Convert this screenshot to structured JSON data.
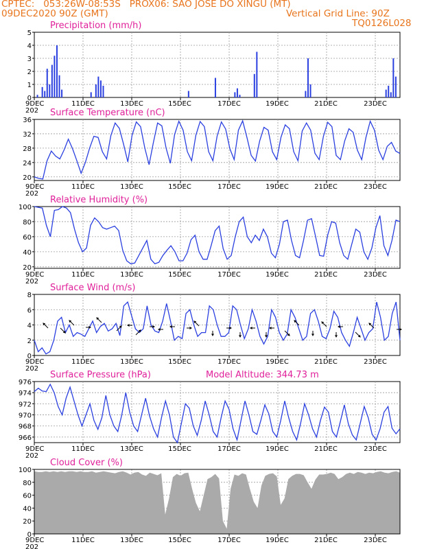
{
  "header": {
    "line1_left": "CPTEC:   053:26W-08:53S   PROX06: SAO JOSE DO XINGU (MT)",
    "line2_left": "09DEC2020 90Z (GMT)",
    "line2_right": "Vertical Grid Line: 90Z",
    "line3_right": "TQ0126L028"
  },
  "model_altitude": "Model Altitude: 344.73 m",
  "colors": {
    "line": "#2a3fe0",
    "bar": "#2a3fe0",
    "cloud": "#aaaaaa",
    "title": "#e0209a",
    "header": "#e8741c"
  },
  "x_ticks": [
    "9DEC",
    "11DEC",
    "13DEC",
    "15DEC",
    "17DEC",
    "19DEC",
    "21DEC",
    "23DEC"
  ],
  "x_year_stub": "202",
  "chart_data": [
    {
      "type": "bar",
      "title": "Precipitation (mm/h)",
      "ylim": [
        0,
        5
      ],
      "yticks": [
        "0",
        "1",
        "2",
        "3",
        "4",
        "5"
      ],
      "x": [
        0.1,
        0.3,
        0.4,
        0.5,
        0.6,
        0.7,
        0.8,
        0.9,
        1.0,
        1.1,
        2.3,
        2.5,
        2.6,
        2.7,
        2.8,
        6.3,
        7.4,
        8.2,
        8.3,
        8.4,
        9.0,
        9.1,
        11.1,
        11.2,
        11.3,
        14.4,
        14.5,
        14.6,
        14.7,
        14.8
      ],
      "values": [
        0.2,
        0.8,
        0.5,
        2.2,
        1.0,
        2.5,
        3.2,
        4.0,
        1.7,
        0.6,
        0.4,
        1.0,
        1.6,
        1.3,
        0.9,
        0.5,
        1.5,
        0.4,
        0.7,
        0.2,
        1.8,
        3.5,
        0.5,
        3.0,
        1.0,
        0.6,
        0.9,
        0.4,
        3.0,
        1.6
      ]
    },
    {
      "type": "line",
      "title": "Surface Temperature (nC)",
      "ylim": [
        19,
        36
      ],
      "yticks": [
        "20",
        "24",
        "28",
        "32",
        "36"
      ],
      "series": [
        {
          "values": [
            20,
            19.6,
            19.4,
            24.5,
            27.2,
            25.8,
            25,
            27.5,
            30.5,
            27.8,
            24.5,
            21,
            24,
            28,
            31.3,
            31,
            27,
            25,
            31.5,
            35,
            33.5,
            29,
            24.2,
            31.6,
            35.3,
            34,
            28,
            23.4,
            29.5,
            35,
            34.2,
            28,
            23.8,
            31.8,
            35.5,
            33,
            27,
            24.5,
            31.6,
            35.4,
            34,
            27,
            24.5,
            31.4,
            35.3,
            33.3,
            27.8,
            24.8,
            33,
            35.6,
            31,
            26,
            24.4,
            30,
            33.8,
            33,
            27,
            24.8,
            31,
            34.5,
            33.4,
            27,
            24.5,
            32.8,
            35,
            33,
            26.6,
            24.8,
            31.3,
            35.2,
            34,
            26,
            24.8,
            30,
            33.4,
            32.4,
            27.4,
            24.8,
            31,
            35.5,
            33,
            27.4,
            24.8,
            28.5,
            29.6,
            27.2,
            26.5
          ]
        }
      ]
    },
    {
      "type": "line",
      "title": "Relative Humidity (%)",
      "ylim": [
        18,
        100
      ],
      "yticks": [
        "20",
        "40",
        "60",
        "80",
        "100"
      ],
      "series": [
        {
          "values": [
            100,
            99,
            98,
            75,
            60,
            95,
            96,
            100,
            98,
            92,
            70,
            52,
            40,
            45,
            75,
            85,
            80,
            72,
            70,
            72,
            74,
            68,
            42,
            28,
            24,
            25,
            35,
            45,
            55,
            30,
            24,
            26,
            35,
            42,
            48,
            40,
            28,
            28,
            38,
            56,
            62,
            40,
            30,
            30,
            48,
            68,
            74,
            44,
            30,
            35,
            60,
            80,
            86,
            60,
            52,
            62,
            55,
            70,
            60,
            38,
            32,
            50,
            80,
            82,
            55,
            35,
            32,
            55,
            82,
            84,
            60,
            35,
            34,
            62,
            80,
            78,
            52,
            35,
            30,
            50,
            70,
            66,
            40,
            30,
            45,
            72,
            88,
            48,
            35,
            55,
            82,
            80
          ]
        }
      ]
    },
    {
      "type": "line",
      "title": "Surface Wind (m/s)",
      "ylim": [
        0,
        8
      ],
      "yticks": [
        "0",
        "2",
        "4",
        "6",
        "8"
      ],
      "series": [
        {
          "values": [
            2,
            0.5,
            1,
            0.2,
            0.5,
            2,
            4.5,
            5,
            3,
            4,
            2.5,
            3,
            2.8,
            2.5,
            3.5,
            4.5,
            3,
            3.8,
            4.2,
            3.2,
            3.5,
            4.2,
            2.6,
            6.5,
            7,
            5.2,
            3.5,
            3,
            3.5,
            6.5,
            4,
            3.2,
            3,
            4.5,
            6.8,
            4.5,
            2,
            2.5,
            2.2,
            5.5,
            6,
            4,
            2.5,
            3,
            3,
            6.5,
            6,
            4,
            2.5,
            2.5,
            3,
            6.5,
            6,
            4,
            2.2,
            3.5,
            6,
            4.5,
            2.5,
            1.5,
            2.5,
            6,
            5,
            3,
            2,
            2.8,
            6,
            5,
            3.5,
            2,
            2.5,
            5.5,
            6,
            4.5,
            2.5,
            2.2,
            3.5,
            5.8,
            5,
            3,
            2,
            1.2,
            3,
            5,
            3.5,
            2,
            3,
            3.5,
            7,
            5,
            2,
            2.5,
            5.5,
            7,
            2
          ]
        }
      ]
    },
    {
      "type": "line",
      "title": "Surface Pressure (hPa)",
      "ylim": [
        965,
        976
      ],
      "yticks": [
        "966",
        "968",
        "970",
        "972",
        "974",
        "976"
      ],
      "series": [
        {
          "values": [
            974.2,
            974.8,
            974.3,
            974.2,
            975.5,
            974,
            971.5,
            970,
            973,
            975,
            972.5,
            970,
            968,
            970,
            972,
            969,
            967.4,
            969.5,
            973.5,
            970,
            968,
            967,
            970,
            974,
            970.5,
            968,
            967,
            970,
            973,
            969.8,
            967.5,
            966,
            969.5,
            972.5,
            970,
            966,
            964.5,
            968.5,
            972,
            971.2,
            968,
            966.3,
            969,
            972.5,
            970,
            967,
            966,
            969.5,
            972.5,
            971,
            967.5,
            965.5,
            969,
            972.5,
            970,
            967,
            966.5,
            969,
            971.8,
            970.2,
            967,
            966,
            969,
            972.5,
            969.5,
            967,
            965.5,
            968.5,
            972,
            970,
            967.5,
            966,
            969,
            971.4,
            970.5,
            967,
            966,
            968.8,
            971.8,
            968.4,
            966.4,
            965.5,
            968.5,
            971.5,
            969.5,
            966.5,
            965.5,
            967.5,
            970.5,
            971.5,
            967.6,
            966.6,
            967.5
          ]
        }
      ]
    },
    {
      "type": "area",
      "title": "Cloud Cover (%)",
      "ylim": [
        0,
        100
      ],
      "yticks": [
        "0",
        "20",
        "40",
        "60",
        "80",
        "100"
      ],
      "series": [
        {
          "values": [
            97,
            96,
            96,
            97,
            96,
            97,
            96,
            97,
            96,
            97,
            97,
            96,
            97,
            96,
            96,
            97,
            95,
            96,
            97,
            96,
            95,
            94,
            96,
            97,
            95,
            92,
            95,
            96,
            92,
            90,
            95,
            93,
            91,
            94,
            30,
            55,
            88,
            93,
            90,
            94,
            95,
            70,
            48,
            35,
            60,
            85,
            88,
            93,
            86,
            20,
            8,
            70,
            92,
            90,
            94,
            92,
            70,
            50,
            40,
            75,
            90,
            93,
            94,
            89,
            45,
            55,
            85,
            90,
            93,
            93,
            91,
            80,
            70,
            84,
            92,
            92,
            93,
            95,
            93,
            85,
            88,
            93,
            95,
            93,
            96,
            95,
            93,
            95,
            94,
            96,
            97,
            95,
            94,
            96,
            97,
            95
          ]
        }
      ]
    }
  ]
}
